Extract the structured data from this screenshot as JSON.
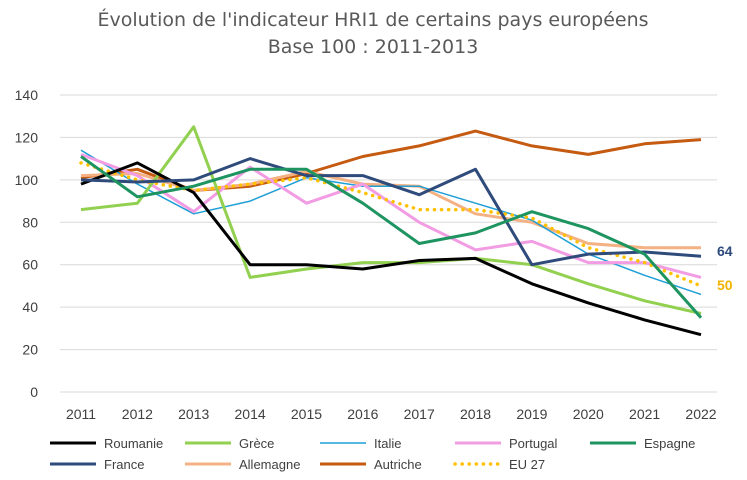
{
  "chart_data": {
    "type": "line",
    "title": "Évolution de l'indicateur HRI1 de certains pays européens",
    "subtitle": "Base 100 : 2011-2013",
    "xlabel": "",
    "ylabel": "",
    "x": [
      "2011",
      "2012",
      "2013",
      "2014",
      "2015",
      "2016",
      "2017",
      "2018",
      "2019",
      "2020",
      "2021",
      "2022"
    ],
    "ylim": [
      0,
      140
    ],
    "yticks": [
      "0",
      "20",
      "40",
      "60",
      "80",
      "100",
      "120",
      "140"
    ],
    "grid": true,
    "legend_position": "bottom",
    "series": [
      {
        "name": "Roumanie",
        "color": "#000000",
        "dashed": false,
        "values": [
          98,
          108,
          94,
          60,
          60,
          58,
          62,
          63,
          51,
          42,
          34,
          27
        ]
      },
      {
        "name": "Grèce",
        "color": "#92d050",
        "dashed": false,
        "values": [
          86,
          89,
          125,
          54,
          58,
          61,
          61,
          63,
          60,
          51,
          43,
          37
        ]
      },
      {
        "name": "Italie",
        "color": "#1f9fd6",
        "dashed": false,
        "values": [
          114,
          98,
          84,
          90,
          101,
          97,
          97,
          89,
          81,
          65,
          55,
          46
        ]
      },
      {
        "name": "Portugal",
        "color": "#f29ce3",
        "dashed": false,
        "values": [
          112,
          102,
          85,
          106,
          89,
          98,
          80,
          67,
          71,
          61,
          61,
          54
        ]
      },
      {
        "name": "Espagne",
        "color": "#1e9460",
        "dashed": false,
        "values": [
          111,
          92,
          97,
          105,
          105,
          89,
          70,
          75,
          85,
          77,
          65,
          35
        ]
      },
      {
        "name": "France",
        "color": "#2e4b7c",
        "dashed": false,
        "values": [
          100,
          99,
          100,
          110,
          102,
          102,
          93,
          105,
          60,
          65,
          66,
          64
        ]
      },
      {
        "name": "Allemagne",
        "color": "#f4b183",
        "dashed": false,
        "values": [
          102,
          103,
          95,
          98,
          104,
          98,
          97,
          84,
          80,
          70,
          68,
          68
        ]
      },
      {
        "name": "Autriche",
        "color": "#c55a11",
        "dashed": false,
        "values": [
          101,
          105,
          95,
          97,
          103,
          111,
          116,
          123,
          116,
          112,
          117,
          119
        ]
      },
      {
        "name": "EU 27",
        "color": "#ffc000",
        "dashed": true,
        "values": [
          108,
          100,
          95,
          98,
          101,
          94,
          86,
          86,
          82,
          68,
          61,
          50
        ]
      }
    ],
    "end_labels": [
      {
        "series": "France",
        "text": "64",
        "color": "#2e4b7c"
      },
      {
        "series": "EU 27",
        "text": "50",
        "color": "#f0b400"
      }
    ]
  }
}
